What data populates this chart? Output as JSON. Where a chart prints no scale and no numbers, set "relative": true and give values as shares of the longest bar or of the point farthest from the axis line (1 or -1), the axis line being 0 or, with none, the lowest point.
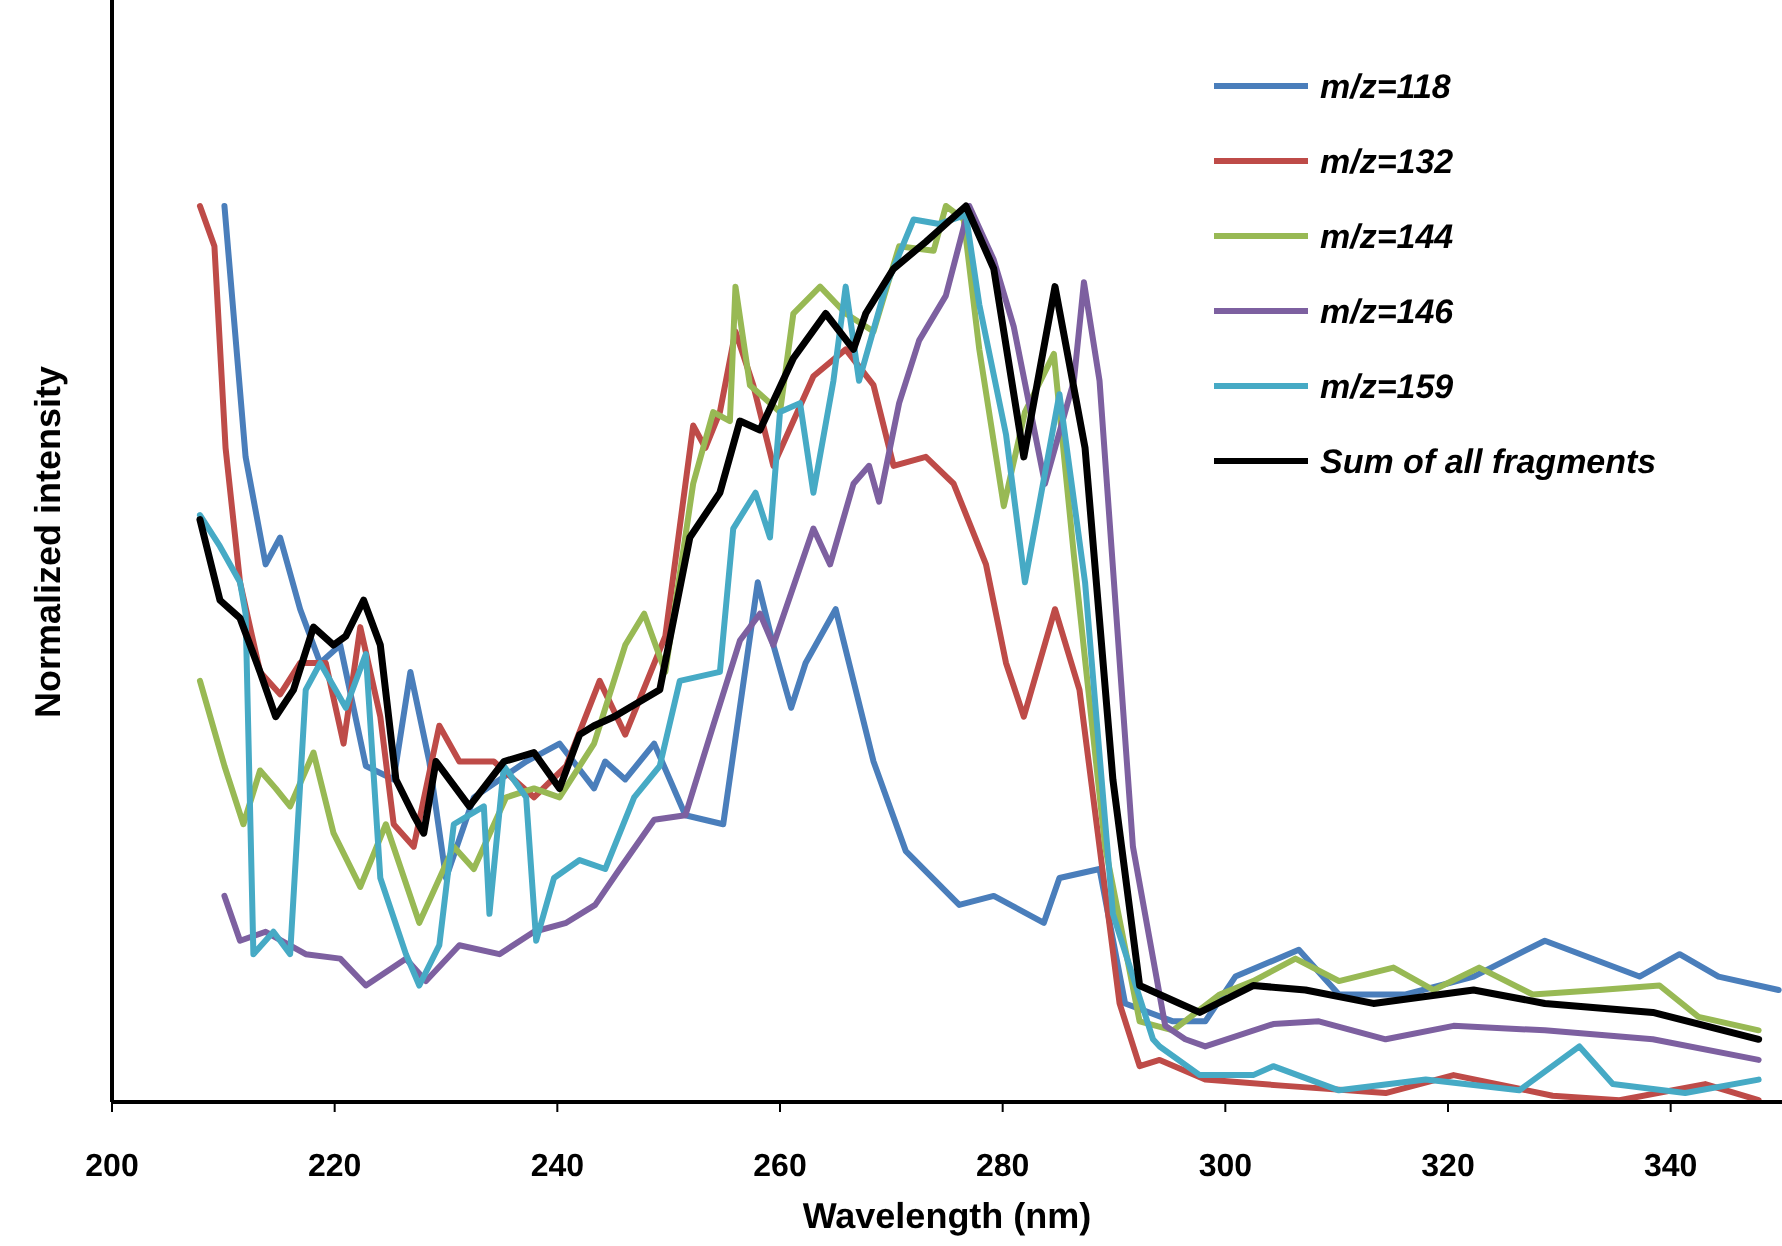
{
  "chart_data": {
    "type": "line",
    "xlabel": "Wavelength (nm)",
    "ylabel": "Normalized intensity",
    "relative": true,
    "xlim": [
      200,
      350
    ],
    "xticks": [
      200,
      220,
      240,
      260,
      280,
      300,
      320,
      340
    ],
    "tick_labels": "x",
    "grid": false,
    "legend": "top right",
    "marker": "none",
    "line_style": "solid",
    "series": [
      {
        "name": "m/z=118",
        "color": "#4a7ebb",
        "x": [
          210.1,
          212,
          213.8,
          215.1,
          216.9,
          218.7,
          220.5,
          222.8,
          225.3,
          226.8,
          228.5,
          230,
          232.5,
          237.2,
          240.2,
          243.3,
          244.3,
          246.1,
          248.7,
          251.5,
          254.9,
          258,
          259.4,
          261,
          262.3,
          265,
          268.4,
          271.3,
          276.1,
          279.2,
          283.7,
          285.1,
          288.7,
          291,
          295.3,
          298.2,
          300.9,
          306.6,
          310.2,
          316.2,
          322.3,
          328.7,
          337.2,
          340.8,
          344.3,
          349.7
        ],
        "values": [
          1,
          0.72,
          0.6,
          0.63,
          0.55,
          0.49,
          0.51,
          0.375,
          0.36,
          0.48,
          0.38,
          0.25,
          0.34,
          0.38,
          0.4,
          0.35,
          0.38,
          0.36,
          0.4,
          0.32,
          0.31,
          0.58,
          0.51,
          0.44,
          0.49,
          0.55,
          0.38,
          0.28,
          0.22,
          0.23,
          0.2,
          0.25,
          0.26,
          0.11,
          0.09,
          0.09,
          0.14,
          0.17,
          0.12,
          0.12,
          0.14,
          0.18,
          0.14,
          0.165,
          0.14,
          0.125
        ]
      },
      {
        "name": "m/z=132",
        "color": "#be4b48",
        "x": [
          207.9,
          209.2,
          210.2,
          211.5,
          213.3,
          215.1,
          216.9,
          219.2,
          220.8,
          222.3,
          224.1,
          225.3,
          227.1,
          229.4,
          231.2,
          234.3,
          237.9,
          240.8,
          243.8,
          246.1,
          249.7,
          252.2,
          253.3,
          254.6,
          256,
          257.6,
          259.4,
          263,
          265.9,
          268.4,
          270.2,
          273.1,
          275.6,
          278.5,
          280.3,
          281.9,
          284.7,
          286.9,
          288.7,
          290.5,
          292.3,
          294.1,
          298.2,
          305.4,
          314.4,
          320.5,
          329.4,
          335.4,
          343.1,
          347.9
        ],
        "values": [
          1,
          0.955,
          0.73,
          0.58,
          0.48,
          0.455,
          0.49,
          0.49,
          0.4,
          0.53,
          0.43,
          0.31,
          0.285,
          0.42,
          0.38,
          0.38,
          0.34,
          0.375,
          0.47,
          0.41,
          0.52,
          0.755,
          0.73,
          0.77,
          0.86,
          0.8,
          0.71,
          0.81,
          0.84,
          0.8,
          0.71,
          0.72,
          0.69,
          0.6,
          0.49,
          0.43,
          0.55,
          0.46,
          0.285,
          0.11,
          0.04,
          0.047,
          0.025,
          0.018,
          0.01,
          0.03,
          0.007,
          0.002,
          0.02,
          0.002
        ]
      },
      {
        "name": "m/z=144",
        "color": "#98b954",
        "x": [
          207.9,
          210.1,
          211.8,
          213.3,
          214.7,
          216,
          218.1,
          219.9,
          222.3,
          224.6,
          227.6,
          230.7,
          232.5,
          235.4,
          237.9,
          240.2,
          243.3,
          246.1,
          247.8,
          249.7,
          252.2,
          254,
          255.5,
          256,
          257.3,
          260,
          261.2,
          263.6,
          265.9,
          268.4,
          270.7,
          273.8,
          274.9,
          276.5,
          277.9,
          280.1,
          282,
          284.6,
          286.4,
          289.2,
          292.3,
          295.3,
          299.5,
          302.5,
          306.3,
          310.2,
          315.1,
          318.7,
          322.8,
          327.6,
          333.6,
          339,
          342.5,
          347.9
        ],
        "values": [
          0.47,
          0.375,
          0.31,
          0.37,
          0.35,
          0.33,
          0.39,
          0.3,
          0.24,
          0.31,
          0.2,
          0.285,
          0.26,
          0.34,
          0.35,
          0.34,
          0.4,
          0.51,
          0.545,
          0.48,
          0.69,
          0.77,
          0.76,
          0.91,
          0.8,
          0.77,
          0.88,
          0.91,
          0.88,
          0.86,
          0.955,
          0.95,
          1,
          0.985,
          0.84,
          0.665,
          0.77,
          0.835,
          0.61,
          0.285,
          0.09,
          0.08,
          0.12,
          0.135,
          0.16,
          0.135,
          0.15,
          0.125,
          0.15,
          0.12,
          0.125,
          0.13,
          0.095,
          0.08
        ]
      },
      {
        "name": "m/z=146",
        "color": "#7d60a0",
        "x": [
          210.1,
          211.5,
          213.8,
          217.4,
          220.5,
          222.8,
          226.4,
          228.2,
          231.2,
          234.8,
          237.9,
          240.8,
          243.4,
          245.6,
          248.7,
          251.5,
          254,
          256.4,
          258.2,
          259.4,
          263,
          264.5,
          266.6,
          268,
          268.9,
          270.7,
          272.5,
          274.9,
          277,
          279.2,
          281,
          283.8,
          286.4,
          287.3,
          288.7,
          291.7,
          294.6,
          296.4,
          298.2,
          304.3,
          308.4,
          314.4,
          320.5,
          328.7,
          338.4,
          347.9
        ],
        "values": [
          0.23,
          0.18,
          0.19,
          0.165,
          0.16,
          0.13,
          0.16,
          0.135,
          0.175,
          0.165,
          0.19,
          0.2,
          0.22,
          0.26,
          0.315,
          0.32,
          0.42,
          0.515,
          0.545,
          0.51,
          0.64,
          0.6,
          0.69,
          0.71,
          0.67,
          0.78,
          0.85,
          0.9,
          1,
          0.94,
          0.865,
          0.69,
          0.805,
          0.915,
          0.805,
          0.285,
          0.085,
          0.07,
          0.062,
          0.087,
          0.09,
          0.07,
          0.085,
          0.08,
          0.07,
          0.047
        ]
      },
      {
        "name": "m/z=159",
        "color": "#46aac5",
        "x": [
          207.9,
          209.7,
          211.5,
          212,
          212.7,
          214.5,
          216,
          217.4,
          218.7,
          221,
          222.8,
          224.1,
          226.4,
          227.6,
          229.4,
          230.7,
          233.4,
          233.9,
          235.2,
          237.2,
          238.1,
          239.7,
          242,
          244.3,
          246.9,
          249.2,
          251,
          254.6,
          255.8,
          257.8,
          259.1,
          260,
          261.8,
          263,
          264.8,
          265.9,
          267.1,
          269.5,
          272,
          274.3,
          276.7,
          277.9,
          280.3,
          282,
          285.1,
          287.4,
          289.9,
          293.5,
          294.1,
          297.7,
          302.5,
          304.3,
          310.2,
          318,
          326.4,
          331.8,
          334.8,
          341.3,
          347.9
        ],
        "values": [
          0.655,
          0.62,
          0.58,
          0.545,
          0.165,
          0.19,
          0.165,
          0.46,
          0.49,
          0.44,
          0.5,
          0.25,
          0.165,
          0.13,
          0.175,
          0.31,
          0.33,
          0.21,
          0.375,
          0.34,
          0.18,
          0.25,
          0.27,
          0.26,
          0.34,
          0.375,
          0.47,
          0.48,
          0.64,
          0.68,
          0.63,
          0.77,
          0.78,
          0.68,
          0.805,
          0.91,
          0.805,
          0.91,
          0.985,
          0.98,
          0.99,
          0.89,
          0.745,
          0.58,
          0.79,
          0.58,
          0.21,
          0.07,
          0.062,
          0.03,
          0.03,
          0.04,
          0.013,
          0.025,
          0.013,
          0.062,
          0.02,
          0.01,
          0.025
        ]
      },
      {
        "name": "Sum of all fragments",
        "color": "#000000",
        "x": [
          207.9,
          209.7,
          211.5,
          213.3,
          214.7,
          216.3,
          218.1,
          219.9,
          221,
          222.6,
          224.1,
          225.5,
          227.1,
          228,
          229.1,
          232.1,
          235.2,
          237.9,
          240.2,
          242,
          243.3,
          245.1,
          249.2,
          251.9,
          254.6,
          256.4,
          258.2,
          261.2,
          264.1,
          266.6,
          267.7,
          270.2,
          273.1,
          276.7,
          279.2,
          281.9,
          284.7,
          287.4,
          289.9,
          292.3,
          295.9,
          297.7,
          302.5,
          307.2,
          313.3,
          322.3,
          328.7,
          338.4,
          347.9
        ],
        "values": [
          0.65,
          0.56,
          0.54,
          0.48,
          0.43,
          0.46,
          0.53,
          0.51,
          0.52,
          0.56,
          0.51,
          0.36,
          0.32,
          0.3,
          0.38,
          0.33,
          0.38,
          0.39,
          0.35,
          0.41,
          0.42,
          0.43,
          0.46,
          0.63,
          0.68,
          0.76,
          0.75,
          0.83,
          0.88,
          0.84,
          0.88,
          0.93,
          0.96,
          1,
          0.93,
          0.72,
          0.91,
          0.73,
          0.36,
          0.13,
          0.11,
          0.1,
          0.13,
          0.125,
          0.11,
          0.125,
          0.11,
          0.1,
          0.07
        ]
      }
    ]
  }
}
